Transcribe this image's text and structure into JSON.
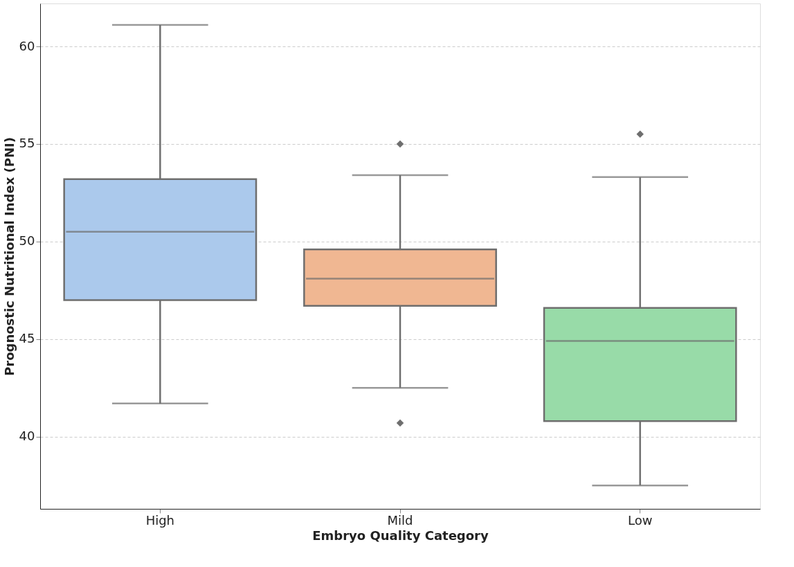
{
  "chart_data": {
    "type": "box",
    "xlabel": "Embryo Quality Category",
    "ylabel": "Prognostic Nutritional Index (PNI)",
    "categories": [
      "High",
      "Mild",
      "Low"
    ],
    "colors": [
      "#abc9ec",
      "#f0b792",
      "#98dba8"
    ],
    "boxes": [
      {
        "low": 41.7,
        "q1": 47.0,
        "median": 50.5,
        "q3": 53.2,
        "high": 61.1
      },
      {
        "low": 42.5,
        "q1": 46.7,
        "median": 48.1,
        "q3": 49.6,
        "high": 53.4,
        "outliers": [
          55.0,
          40.7
        ]
      },
      {
        "low": 37.5,
        "q1": 40.8,
        "median": 44.9,
        "q3": 46.6,
        "high": 53.3,
        "outliers": [
          55.5
        ]
      }
    ],
    "ylim": [
      36.3,
      62.2
    ],
    "yticks": [
      40,
      45,
      50,
      55,
      60
    ],
    "grid": "y"
  }
}
